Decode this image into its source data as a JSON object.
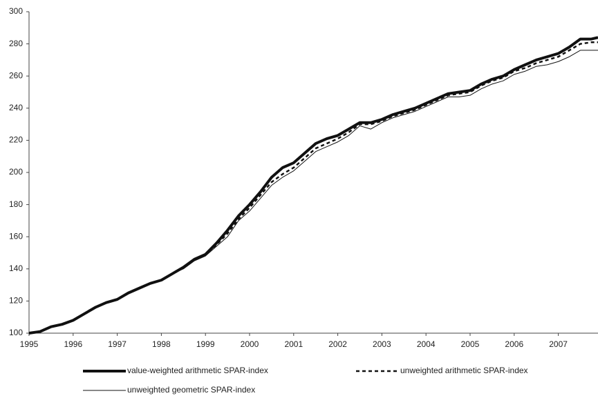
{
  "chart_data": {
    "type": "line",
    "x": [
      1995,
      1995.25,
      1995.5,
      1995.75,
      1996,
      1996.25,
      1996.5,
      1996.75,
      1997,
      1997.25,
      1997.5,
      1997.75,
      1998,
      1998.25,
      1998.5,
      1998.75,
      1999,
      1999.25,
      1999.5,
      1999.75,
      2000,
      2000.25,
      2000.5,
      2000.75,
      2001,
      2001.25,
      2001.5,
      2001.75,
      2002,
      2002.25,
      2002.5,
      2002.75,
      2003,
      2003.25,
      2003.5,
      2003.75,
      2004,
      2004.25,
      2004.5,
      2004.75,
      2005,
      2005.25,
      2005.5,
      2005.75,
      2006,
      2006.25,
      2006.5,
      2006.75,
      2007,
      2007.25,
      2007.5,
      2007.75,
      2007.9
    ],
    "series": [
      {
        "name": "value-weighted arithmetic SPAR-index",
        "color": "#111111",
        "line_width": 4,
        "dash": "none",
        "values": [
          100,
          101,
          104,
          105.5,
          108,
          112,
          116,
          119,
          121,
          125,
          128,
          131,
          133,
          137,
          141,
          146,
          149,
          156,
          164,
          173,
          180,
          188,
          197,
          203,
          206,
          212,
          218,
          221,
          223,
          227,
          231,
          231,
          233,
          236,
          238,
          240,
          243,
          246,
          249,
          250,
          251,
          255,
          258,
          260,
          264,
          267,
          270,
          272,
          274,
          278,
          283,
          283,
          284
        ]
      },
      {
        "name": "unweighted arithmetic SPAR-index",
        "color": "#111111",
        "line_width": 2.5,
        "dash": "5,4",
        "values": [
          100,
          101,
          104,
          105.5,
          108,
          112,
          116,
          119,
          121,
          125,
          128,
          131,
          133,
          137,
          141,
          146,
          149,
          155,
          162,
          171,
          178,
          186,
          194,
          199,
          203,
          209,
          215,
          218,
          221,
          225,
          230,
          230,
          232,
          235,
          237,
          239,
          242,
          245,
          248,
          249,
          250,
          254,
          257,
          259,
          263,
          265,
          268,
          270,
          272,
          276,
          280,
          281,
          281
        ]
      },
      {
        "name": "unweighted geometric SPAR-index",
        "color": "#111111",
        "line_width": 1,
        "dash": "none",
        "values": [
          100,
          101,
          104,
          105,
          108,
          112,
          116,
          119,
          121,
          125,
          128,
          131,
          133,
          137,
          140,
          145,
          148,
          154,
          160,
          170,
          176,
          184,
          192,
          197,
          201,
          207,
          213,
          216,
          219,
          223,
          229,
          227,
          231,
          234,
          236,
          238,
          241,
          244,
          247,
          247,
          248,
          252,
          255,
          257,
          261,
          263,
          266,
          267,
          269,
          272,
          276,
          276,
          276
        ]
      }
    ],
    "xlim": [
      1995,
      2007.9
    ],
    "xticks": [
      1995,
      1996,
      1997,
      1998,
      1999,
      2000,
      2001,
      2002,
      2003,
      2004,
      2005,
      2006,
      2007
    ],
    "ylim": [
      100,
      300
    ],
    "yticks": [
      100,
      120,
      140,
      160,
      180,
      200,
      220,
      240,
      260,
      280,
      300
    ],
    "grid": false,
    "legend": "bottom"
  }
}
